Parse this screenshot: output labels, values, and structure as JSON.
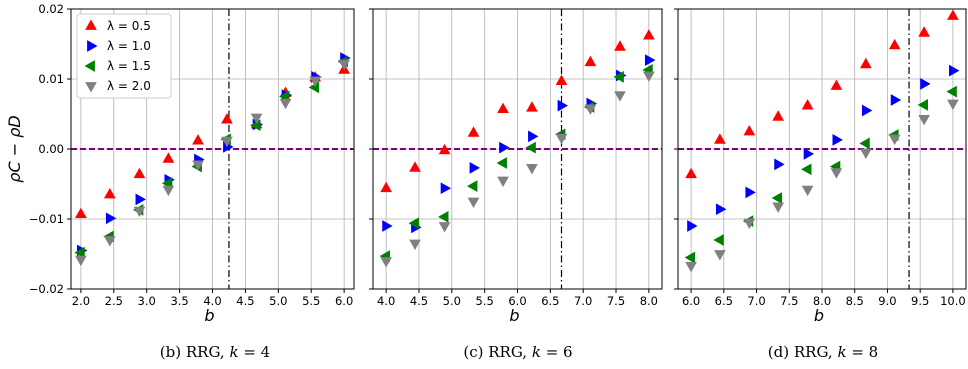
{
  "chart_data": [
    {
      "type": "scatter",
      "caption": {
        "prefix": "(b) RRG, ",
        "var": "k",
        "suffix": " = 4"
      },
      "xlabel": "b",
      "ylabel": "ρC − ρD",
      "xlim": [
        1.85,
        6.15
      ],
      "ylim": [
        -0.02,
        0.02
      ],
      "xticks": [
        "2.0",
        "2.5",
        "3.0",
        "3.5",
        "4.0",
        "4.5",
        "5.0",
        "5.5",
        "6.0"
      ],
      "yticks": [
        "−0.02",
        "−0.01",
        "0.00",
        "0.01",
        "0.02"
      ],
      "yticks_visible": true,
      "grid": true,
      "legend": "top-left",
      "hline": 0.0,
      "vline": 4.25,
      "x": [
        2.0,
        2.44,
        2.89,
        3.33,
        3.78,
        4.22,
        4.67,
        5.11,
        5.56,
        6.0
      ],
      "series": [
        {
          "name": "λ = 0.5",
          "color": "#ff0000",
          "marker": "triangle-up",
          "values": [
            -0.0093,
            -0.0065,
            -0.0036,
            -0.0014,
            0.0012,
            0.0042,
            0.0035,
            0.008,
            0.0102,
            0.0113
          ]
        },
        {
          "name": "λ = 1.0",
          "color": "#0000ff",
          "marker": "triangle-right",
          "values": [
            -0.0145,
            -0.0099,
            -0.0072,
            -0.0044,
            -0.0015,
            0.0003,
            0.0035,
            0.0077,
            0.0103,
            0.013
          ]
        },
        {
          "name": "λ = 1.5",
          "color": "#008000",
          "marker": "triangle-left",
          "values": [
            -0.0148,
            -0.0125,
            -0.0087,
            -0.0049,
            -0.0025,
            0.0014,
            0.0034,
            0.0075,
            0.0088,
            0.0125
          ]
        },
        {
          "name": "λ = 2.0",
          "color": "#808080",
          "marker": "triangle-down",
          "values": [
            -0.0158,
            -0.013,
            -0.0088,
            -0.0058,
            -0.0022,
            0.0012,
            0.0045,
            0.0066,
            0.0098,
            0.0122
          ]
        }
      ]
    },
    {
      "type": "scatter",
      "caption": {
        "prefix": "(c) RRG, ",
        "var": "k",
        "suffix": " = 6"
      },
      "xlabel": "b",
      "xlim": [
        3.8,
        8.2
      ],
      "ylim": [
        -0.02,
        0.02
      ],
      "xticks": [
        "4.0",
        "4.5",
        "5.0",
        "5.5",
        "6.0",
        "6.5",
        "7.0",
        "7.5",
        "8.0"
      ],
      "yticks_visible": false,
      "grid": true,
      "hline": 0.0,
      "vline": 6.67,
      "x": [
        4.0,
        4.44,
        4.89,
        5.33,
        5.78,
        6.22,
        6.67,
        7.11,
        7.56,
        8.0
      ],
      "series": [
        {
          "name": "λ = 0.5",
          "color": "#ff0000",
          "marker": "triangle-up",
          "values": [
            -0.0056,
            -0.0027,
            -0.0002,
            0.0023,
            0.0057,
            0.0059,
            0.0097,
            0.0124,
            0.0146,
            0.0162
          ]
        },
        {
          "name": "λ = 1.0",
          "color": "#0000ff",
          "marker": "triangle-right",
          "values": [
            -0.011,
            -0.0112,
            -0.0056,
            -0.0027,
            0.0002,
            0.0018,
            0.0062,
            0.0065,
            0.0105,
            0.0127
          ]
        },
        {
          "name": "λ = 1.5",
          "color": "#008000",
          "marker": "triangle-left",
          "values": [
            -0.0153,
            -0.0106,
            -0.0097,
            -0.0053,
            -0.002,
            0.0002,
            0.0021,
            0.006,
            0.0103,
            0.0113
          ]
        },
        {
          "name": "λ = 2.0",
          "color": "#808080",
          "marker": "triangle-down",
          "values": [
            -0.016,
            -0.0135,
            -0.011,
            -0.0075,
            -0.0045,
            -0.0027,
            0.0016,
            0.0058,
            0.0077,
            0.0105
          ]
        }
      ]
    },
    {
      "type": "scatter",
      "caption": {
        "prefix": "(d) RRG, ",
        "var": "k",
        "suffix": " = 8"
      },
      "xlabel": "b",
      "xlim": [
        5.8,
        10.2
      ],
      "ylim": [
        -0.02,
        0.02
      ],
      "xticks": [
        "6.0",
        "6.5",
        "7.0",
        "7.5",
        "8.0",
        "8.5",
        "9.0",
        "9.5",
        "10.0"
      ],
      "yticks_visible": false,
      "grid": true,
      "hline": 0.0,
      "vline": 9.33,
      "x": [
        6.0,
        6.44,
        6.89,
        7.33,
        7.78,
        8.22,
        8.67,
        9.11,
        9.56,
        10.0
      ],
      "series": [
        {
          "name": "λ = 0.5",
          "color": "#ff0000",
          "marker": "triangle-up",
          "values": [
            -0.0036,
            0.0013,
            0.0025,
            0.0046,
            0.0062,
            0.009,
            0.0121,
            0.0148,
            0.0166,
            0.019
          ]
        },
        {
          "name": "λ = 1.0",
          "color": "#0000ff",
          "marker": "triangle-right",
          "values": [
            -0.011,
            -0.0086,
            -0.0062,
            -0.0022,
            -0.0007,
            0.0013,
            0.0055,
            0.007,
            0.0093,
            0.0112
          ]
        },
        {
          "name": "λ = 1.5",
          "color": "#008000",
          "marker": "triangle-left",
          "values": [
            -0.0155,
            -0.013,
            -0.0103,
            -0.007,
            -0.0029,
            -0.0025,
            0.0008,
            0.002,
            0.0063,
            0.0082
          ]
        },
        {
          "name": "λ = 2.0",
          "color": "#808080",
          "marker": "triangle-down",
          "values": [
            -0.0167,
            -0.015,
            -0.0105,
            -0.0082,
            -0.0058,
            -0.0033,
            -0.0005,
            0.0015,
            0.0043,
            0.0065
          ]
        }
      ]
    }
  ]
}
